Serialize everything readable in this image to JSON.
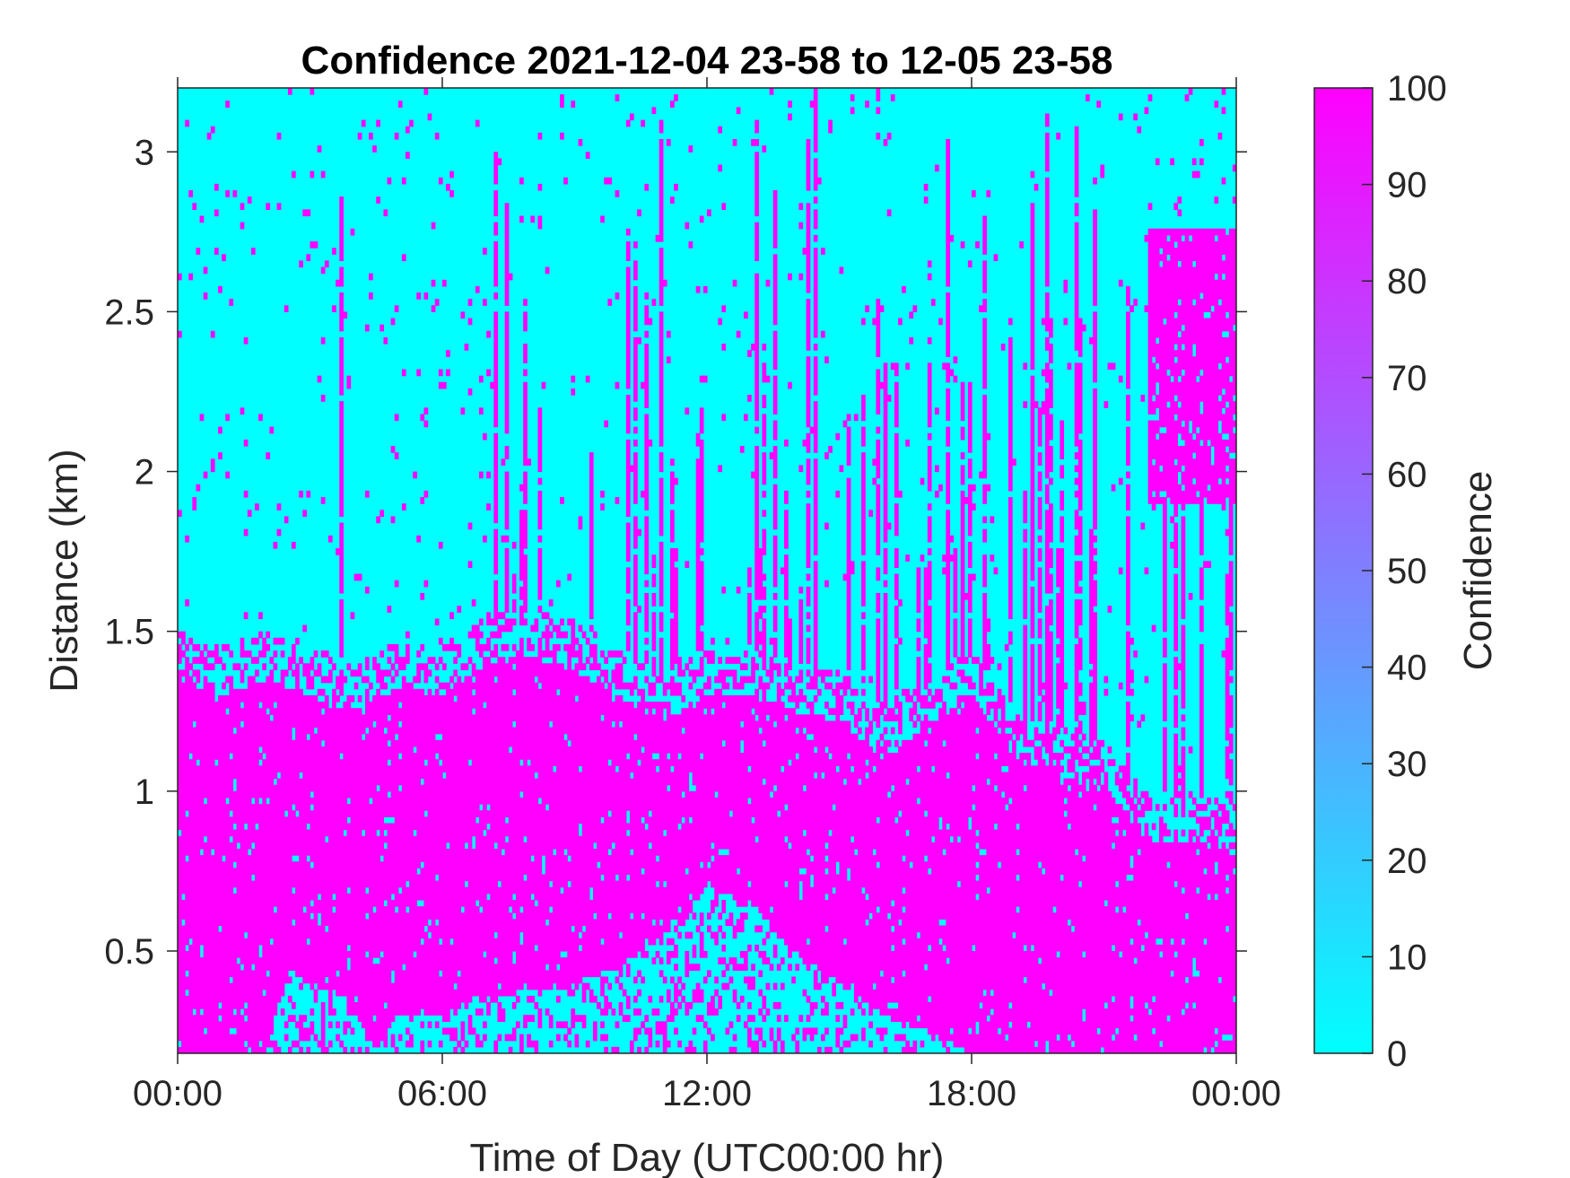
{
  "chart_data": {
    "type": "heatmap",
    "title": "Confidence 2021-12-04 23-58 to 12-05 23-58",
    "xlabel": "Time of Day (UTC00:00 hr)",
    "ylabel": "Distance (km)",
    "x_unit": "hours",
    "xlim": [
      0,
      24
    ],
    "ylim": [
      0.18,
      3.2
    ],
    "xticks": [
      0,
      6,
      12,
      18,
      24
    ],
    "xtick_labels": [
      "00:00",
      "06:00",
      "12:00",
      "18:00",
      "00:00"
    ],
    "yticks": [
      0.5,
      1,
      1.5,
      2,
      2.5,
      3
    ],
    "ytick_labels": [
      "0.5",
      "1",
      "1.5",
      "2",
      "2.5",
      "3"
    ],
    "colorbar": {
      "label": "Confidence",
      "range": [
        0,
        100
      ],
      "ticks": [
        0,
        10,
        20,
        30,
        40,
        50,
        60,
        70,
        80,
        90,
        100
      ],
      "tick_labels": [
        "0",
        "10",
        "20",
        "30",
        "40",
        "50",
        "60",
        "70",
        "80",
        "90",
        "100"
      ],
      "color_low": "#00ffff",
      "color_high": "#ff00ff"
    },
    "values_binary": [
      0,
      100
    ],
    "high_confidence_layer_top_km": [
      [
        0,
        1.35
      ],
      [
        1,
        1.3
      ],
      [
        2,
        1.35
      ],
      [
        3,
        1.3
      ],
      [
        4,
        1.25
      ],
      [
        5,
        1.32
      ],
      [
        6,
        1.3
      ],
      [
        7,
        1.4
      ],
      [
        8,
        1.42
      ],
      [
        9,
        1.38
      ],
      [
        10,
        1.3
      ],
      [
        11,
        1.22
      ],
      [
        12,
        1.3
      ],
      [
        13,
        1.3
      ],
      [
        14,
        1.25
      ],
      [
        15,
        1.22
      ],
      [
        16,
        1.1
      ],
      [
        17,
        1.2
      ],
      [
        18,
        1.3
      ],
      [
        19,
        1.1
      ],
      [
        20,
        1.05
      ],
      [
        21,
        1.0
      ],
      [
        22,
        0.85
      ],
      [
        23,
        0.85
      ],
      [
        24,
        0.8
      ]
    ],
    "low_confidence_bottom_top_km": [
      [
        0,
        0.18
      ],
      [
        2,
        0.18
      ],
      [
        2.5,
        0.45
      ],
      [
        3,
        0.4
      ],
      [
        4,
        0.35
      ],
      [
        4.4,
        0.18
      ],
      [
        5,
        0.3
      ],
      [
        6,
        0.3
      ],
      [
        7,
        0.35
      ],
      [
        8,
        0.38
      ],
      [
        9,
        0.4
      ],
      [
        10,
        0.45
      ],
      [
        11,
        0.55
      ],
      [
        12,
        0.7
      ],
      [
        13,
        0.65
      ],
      [
        14,
        0.5
      ],
      [
        15,
        0.4
      ],
      [
        16,
        0.3
      ],
      [
        17,
        0.25
      ],
      [
        18,
        0.18
      ],
      [
        24,
        0.18
      ]
    ],
    "high_confidence_upper_block": {
      "x_range": [
        22,
        24
      ],
      "y_range_km": [
        1.9,
        2.75
      ]
    },
    "grid": false
  }
}
